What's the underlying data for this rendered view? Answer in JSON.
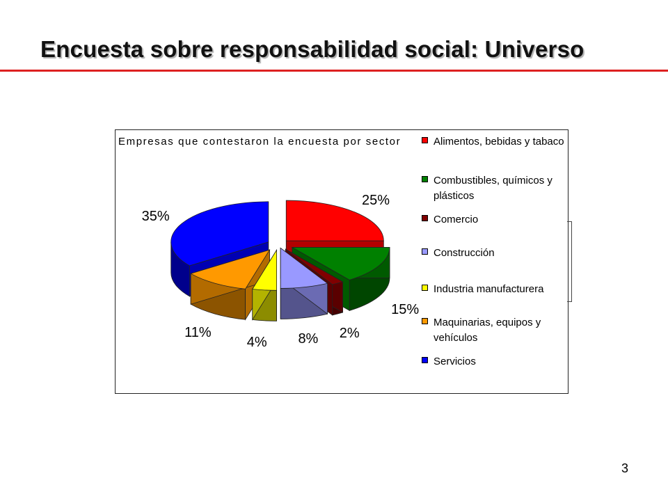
{
  "slide": {
    "title": "Encuesta sobre responsabilidad social: Universo",
    "page_number": "3"
  },
  "colors": {
    "title_rule": "#dd2020"
  },
  "chart_data": {
    "type": "pie",
    "title": "Empresas que contestaron la encuesta por sector",
    "legend_position": "right",
    "categories": [
      "Alimentos, bebidas y tabaco",
      "Combustibles, químicos y plásticos",
      "Comercio",
      "Construcción",
      "Industria manufacturera",
      "Maquinarias, equipos y vehículos",
      "Servicios"
    ],
    "values": [
      25,
      15,
      2,
      8,
      4,
      11,
      35
    ],
    "labels": [
      "25%",
      "15%",
      "2%",
      "8%",
      "4%",
      "11%",
      "35%"
    ],
    "colors": [
      "#ff0000",
      "#008000",
      "#800000",
      "#9999ff",
      "#ffff00",
      "#ff9900",
      "#0000ff"
    ]
  }
}
